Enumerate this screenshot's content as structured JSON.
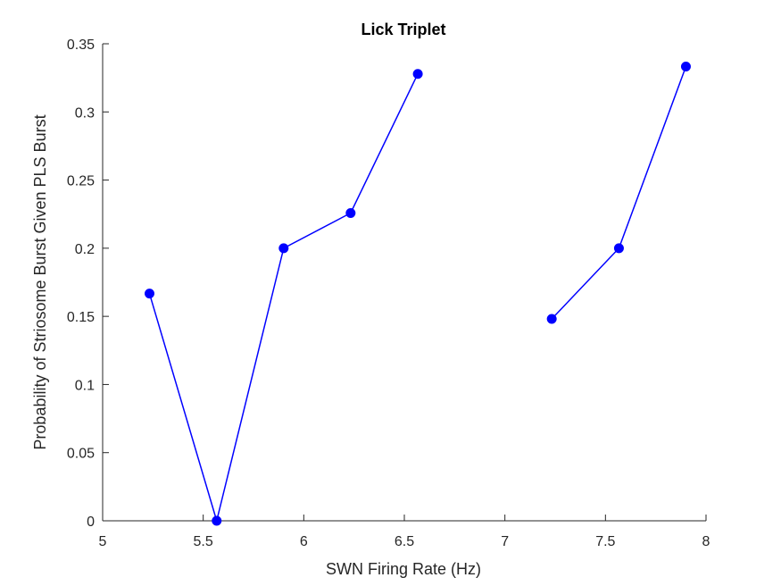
{
  "chart_data": {
    "type": "line",
    "title": "Lick Triplet",
    "xlabel": "SWN Firing Rate (Hz)",
    "ylabel": "Probability of Striosome Burst Given PLS Burst",
    "xlim": [
      5,
      8
    ],
    "ylim": [
      0,
      0.35
    ],
    "xticks": [
      "5",
      "5.5",
      "6",
      "6.5",
      "7",
      "7.5",
      "8"
    ],
    "yticks": [
      "0",
      "0.05",
      "0.1",
      "0.15",
      "0.2",
      "0.25",
      "0.3",
      "0.35"
    ],
    "grid": false,
    "color": "#0000ff",
    "series": [
      {
        "x": [
          5.233,
          5.567,
          5.9,
          6.233,
          6.567
        ],
        "y": [
          0.1667,
          0.0,
          0.2,
          0.2258,
          0.3279
        ]
      },
      {
        "x": [
          7.233,
          7.567,
          7.9
        ],
        "y": [
          0.1481,
          0.2,
          0.3333
        ]
      }
    ]
  }
}
